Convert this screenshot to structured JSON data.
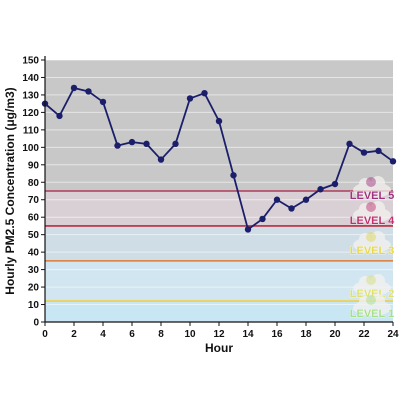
{
  "chart_data": {
    "type": "line",
    "xlabel": "Hour",
    "ylabel": "Hourly PM2.5 Concentration (μg/m3)",
    "xlim": [
      0,
      24
    ],
    "ylim": [
      0,
      150
    ],
    "x_ticks": [
      "0",
      "2",
      "4",
      "6",
      "8",
      "10",
      "12",
      "14",
      "16",
      "18",
      "20",
      "22",
      "24"
    ],
    "y_ticks": [
      "0",
      "10",
      "20",
      "30",
      "40",
      "50",
      "60",
      "70",
      "80",
      "90",
      "100",
      "110",
      "120",
      "130",
      "140",
      "150"
    ],
    "series": [
      {
        "color": "#1b1f6b",
        "x": [
          0,
          1,
          2,
          3,
          4,
          5,
          6,
          7,
          8,
          9,
          10,
          11,
          12,
          13,
          14,
          15,
          16,
          17,
          18,
          19,
          20,
          21,
          22,
          23,
          24
        ],
        "y": [
          125,
          118,
          134,
          132,
          126,
          101,
          103,
          102,
          93,
          102,
          128,
          131,
          115,
          84,
          53,
          59,
          70,
          65,
          70,
          76,
          79,
          102,
          97,
          98,
          92
        ]
      }
    ],
    "levels": [
      {
        "label": "LEVEL 5",
        "value": 75,
        "band_from": 75,
        "band_to": 150,
        "band_color": "#c8c8c8",
        "line_color": "#b03a5b",
        "text_color": "#a0307e"
      },
      {
        "label": "LEVEL 4",
        "value": 55,
        "band_from": 55,
        "band_to": 75,
        "band_color": "#d8d0d4",
        "line_color": "#c0283c",
        "text_color": "#c03070"
      },
      {
        "label": "LEVEL 3",
        "value": 35,
        "band_from": 35,
        "band_to": 55,
        "band_color": "#cfdde6",
        "line_color": "#e07a30",
        "text_color": "#e6d84a"
      },
      {
        "label": "LEVEL 2",
        "value": 12,
        "band_from": 12,
        "band_to": 35,
        "band_color": "#d2e6f2",
        "line_color": "#f0d040",
        "text_color": "#e0e070"
      },
      {
        "label": "LEVEL 1",
        "value": 0,
        "band_from": 0,
        "band_to": 12,
        "band_color": "#c8e6f4",
        "line_color": "",
        "text_color": "#a8e08a"
      }
    ]
  }
}
